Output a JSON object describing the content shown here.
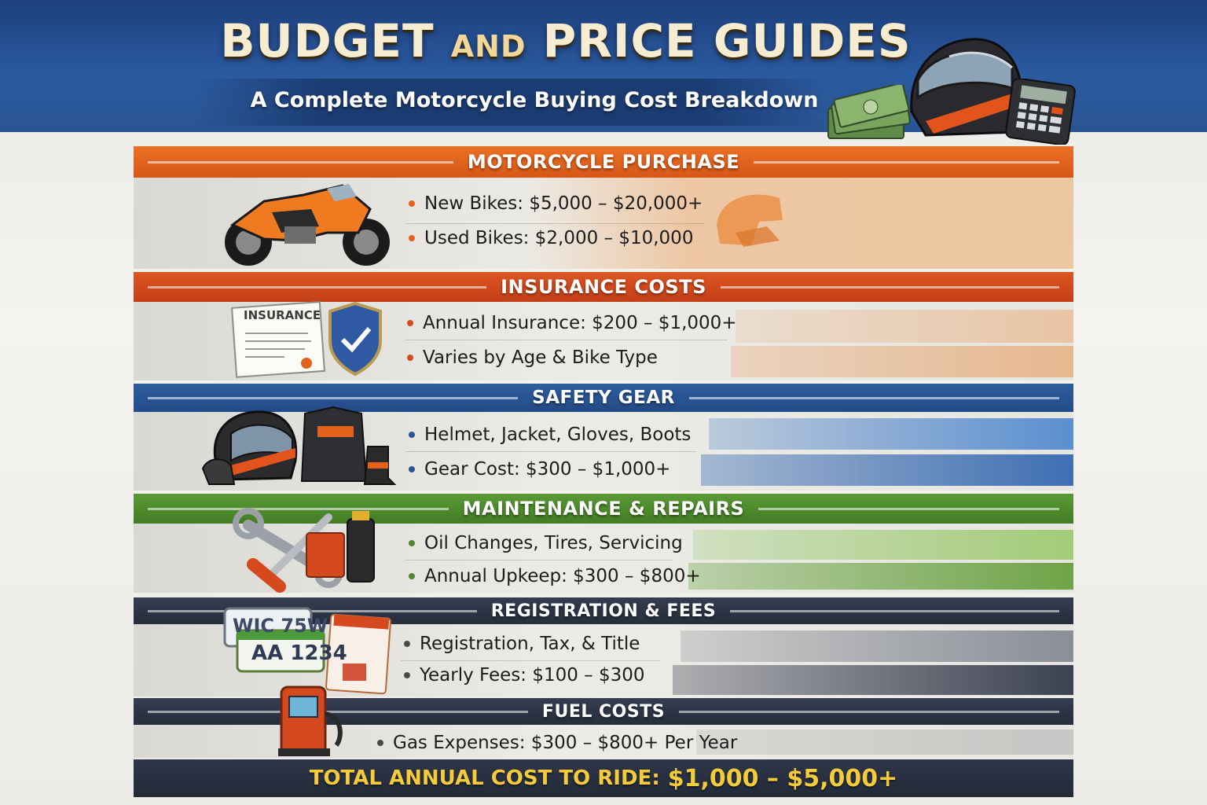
{
  "header": {
    "title_part1": "BUDGET",
    "title_and": "AND",
    "title_part2": "PRICE GUIDES",
    "subtitle": "A Complete Motorcycle Buying Cost Breakdown"
  },
  "sections": [
    {
      "title": "MOTORCYCLE PURCHASE",
      "color": "#e2621b",
      "items": [
        "New Bikes: $5,000 – $20,000+",
        "Used Bikes: $2,000 – $10,000"
      ]
    },
    {
      "title": "INSURANCE COSTS",
      "color": "#d4491d",
      "icon_text": "INSURANCE",
      "items": [
        "Annual Insurance: $200 – $1,000+",
        "Varies by Age & Bike Type"
      ]
    },
    {
      "title": "SAFETY GEAR",
      "color": "#2a5796",
      "items": [
        "Helmet, Jacket, Gloves, Boots",
        "Gear Cost: $300 – $1,000+"
      ]
    },
    {
      "title": "MAINTENANCE & REPAIRS",
      "color": "#4e8a2c",
      "items": [
        "Oil Changes, Tires, Servicing",
        "Annual Upkeep: $300 – $800+"
      ]
    },
    {
      "title": "REGISTRATION & FEES",
      "color": "#2e3547",
      "plates": [
        "WIC 75W",
        "AA 1234"
      ],
      "items": [
        "Registration, Tax, & Title",
        "Yearly Fees: $100 – $300"
      ]
    },
    {
      "title": "FUEL COSTS",
      "color": "#2e3547",
      "items": [
        "Gas Expenses: $300 – $800+ Per Year"
      ]
    }
  ],
  "total": {
    "label": "TOTAL ANNUAL COST TO RIDE:",
    "amount": "$1,000 – $5,000+"
  }
}
